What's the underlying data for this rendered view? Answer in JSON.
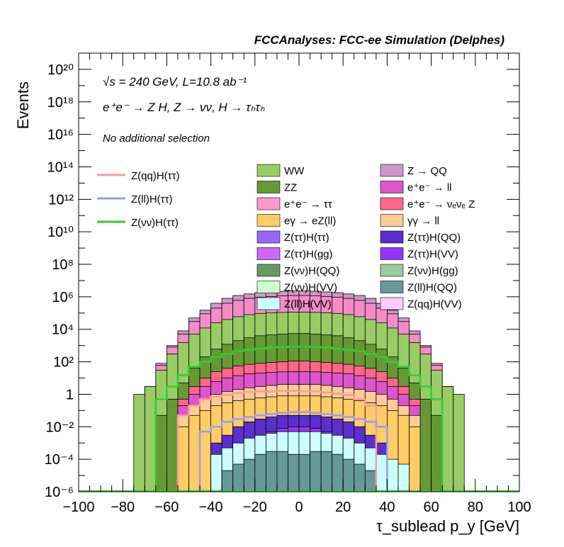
{
  "header": {
    "title": "FCCAnalyses: FCC-ee Simulation (Delphes)"
  },
  "annotations": {
    "energy": "√s = 240 GeV, L=10.8 ab⁻¹",
    "process": "e⁺e⁻ → Z H, Z → νν, H → τₕτₕ",
    "selection": "No additional selection"
  },
  "chart_data": {
    "type": "bar",
    "title": "FCCAnalyses: FCC-ee Simulation (Delphes)",
    "xlabel": "τ_sublead p_y [GeV]",
    "ylabel": "Events",
    "xlim": [
      -100,
      100
    ],
    "ylim": [
      1e-06,
      1e+21
    ],
    "yscale": "log",
    "bin_width": 5,
    "grid": false,
    "legend_placement": "top",
    "x_ticks": [
      "−100",
      "−80",
      "−60",
      "−40",
      "−20",
      "0",
      "20",
      "40",
      "60",
      "80",
      "100"
    ],
    "y_ticks": [
      "10⁻⁶",
      "10⁻⁴",
      "10⁻²",
      "1",
      "10²",
      "10⁴",
      "10⁶",
      "10⁸",
      "10¹⁰",
      "10¹²",
      "10¹⁴",
      "10¹⁶",
      "10¹⁸",
      "10²⁰"
    ],
    "stack": [
      {
        "name": "Z → QQ",
        "color": "#cc99cc",
        "x": [
          -70,
          -65,
          -60,
          -55,
          -50,
          -45,
          -40,
          -35,
          -30,
          -25,
          -20,
          -15,
          -10,
          -5,
          0,
          5,
          10,
          15,
          20,
          25,
          30,
          35,
          40,
          45,
          50,
          55,
          60,
          65
        ],
        "total": [
          3,
          80,
          1000,
          8000,
          50000,
          150000,
          400000,
          800000,
          1200000,
          1500000,
          1800000,
          2000000,
          2200000,
          2300000,
          2300000,
          2200000,
          2000000,
          1800000,
          1500000,
          1200000,
          800000,
          400000,
          150000,
          50000,
          8000,
          1000,
          80,
          3
        ]
      },
      {
        "name": "e⁺e⁻ → ττ",
        "color": "#f58cc8",
        "x": [
          -70,
          -65,
          -60,
          -55,
          -50,
          -45,
          -40,
          -35,
          -30,
          -25,
          -20,
          -15,
          -10,
          -5,
          0,
          5,
          10,
          15,
          20,
          25,
          30,
          35,
          40,
          45,
          50,
          55,
          60,
          65
        ],
        "total": [
          3,
          60,
          800,
          5000,
          30000,
          90000,
          200000,
          400000,
          600000,
          800000,
          950000,
          1050000,
          1150000,
          1200000,
          1200000,
          1150000,
          1050000,
          950000,
          800000,
          600000,
          400000,
          200000,
          90000,
          30000,
          5000,
          800,
          60,
          3
        ]
      },
      {
        "name": "WW",
        "color": "#99cc66",
        "x": [
          -75,
          -70,
          -65,
          -60,
          -55,
          -50,
          -45,
          -40,
          -35,
          -30,
          -25,
          -20,
          -15,
          -10,
          -5,
          0,
          5,
          10,
          15,
          20,
          25,
          30,
          35,
          40,
          45,
          50,
          55,
          60,
          65,
          70
        ],
        "total": [
          1,
          3,
          30,
          300,
          1500,
          5000,
          12000,
          25000,
          40000,
          60000,
          80000,
          95000,
          105000,
          110000,
          115000,
          115000,
          110000,
          105000,
          95000,
          80000,
          60000,
          40000,
          25000,
          12000,
          5000,
          1500,
          300,
          30,
          3,
          1
        ]
      },
      {
        "name": "ZZ",
        "color": "#669933",
        "x": [
          -65,
          -60,
          -55,
          -50,
          -45,
          -40,
          -35,
          -30,
          -25,
          -20,
          -15,
          -10,
          -5,
          0,
          5,
          10,
          15,
          20,
          25,
          30,
          35,
          40,
          45,
          50,
          55,
          60
        ],
        "total": [
          0.05,
          0.5,
          5,
          40,
          200,
          600,
          1200,
          2000,
          3000,
          4000,
          4500,
          5000,
          5500,
          5500,
          5000,
          4500,
          4000,
          3000,
          2000,
          1200,
          600,
          200,
          40,
          5,
          0.5,
          0.05
        ]
      },
      {
        "name": "e⁺e⁻ → νₑνₑ Z",
        "color": "#ff6688",
        "x": [
          -55,
          -50,
          -45,
          -40,
          -35,
          -30,
          -25,
          -20,
          -15,
          -10,
          -5,
          0,
          5,
          10,
          15,
          20,
          25,
          30,
          35,
          40,
          45,
          50
        ],
        "total": [
          0.5,
          3,
          10,
          25,
          40,
          55,
          70,
          80,
          90,
          100,
          110,
          110,
          100,
          90,
          80,
          70,
          55,
          40,
          25,
          10,
          3,
          0.5
        ]
      },
      {
        "name": "Z(qq)H(VV)",
        "color": "#dd55cc",
        "x": [
          -55,
          -50,
          -45,
          -40,
          -35,
          -30,
          -25,
          -20,
          -15,
          -10,
          -5,
          0,
          5,
          10,
          15,
          20,
          25,
          30,
          35,
          40,
          45,
          50
        ],
        "total": [
          0.2,
          1,
          3,
          6,
          10,
          14,
          18,
          20,
          22,
          24,
          25,
          25,
          24,
          22,
          20,
          18,
          14,
          10,
          6,
          3,
          1,
          0.2
        ]
      },
      {
        "name": "γγ → ll",
        "color": "#ffcc99",
        "x": [
          -55,
          -50,
          -45,
          -40,
          -35,
          -30,
          -25,
          -20,
          -15,
          -10,
          -5,
          0,
          5,
          10,
          15,
          20,
          25,
          30,
          35,
          40,
          45,
          50
        ],
        "total": [
          0.05,
          0.2,
          0.5,
          1,
          1.5,
          2,
          2.5,
          3,
          3.5,
          4,
          4,
          4,
          4,
          3.5,
          3,
          2.5,
          2,
          1.5,
          1,
          0.5,
          0.2,
          0.05
        ]
      },
      {
        "name": "eγ → eZ(ll)",
        "color": "#ffcc66",
        "x": [
          -55,
          -50,
          -45,
          -40,
          -35,
          -30,
          -25,
          -20,
          -15,
          -10,
          -5,
          0,
          5,
          10,
          15,
          20,
          25,
          30,
          35,
          40,
          45,
          50
        ],
        "total": [
          0.01,
          0.05,
          0.1,
          0.2,
          0.3,
          0.4,
          0.5,
          0.6,
          0.7,
          0.8,
          0.8,
          0.8,
          0.8,
          0.7,
          0.6,
          0.5,
          0.4,
          0.3,
          0.2,
          0.1,
          0.05,
          0.01
        ]
      },
      {
        "name": "Z(ττ)H(QQ)",
        "color": "#5c2ecc",
        "x": [
          -40,
          -35,
          -30,
          -25,
          -20,
          -15,
          -10,
          -5,
          0,
          5,
          10,
          15,
          20,
          25,
          30,
          35
        ],
        "total": [
          0.001,
          0.003,
          0.01,
          0.02,
          0.03,
          0.04,
          0.05,
          0.05,
          0.05,
          0.05,
          0.04,
          0.03,
          0.02,
          0.01,
          0.003,
          0.001
        ]
      },
      {
        "name": "Z(ττ)H(VV)",
        "color": "#9933ff",
        "x": [
          -20,
          -15,
          -10,
          -5,
          0,
          5,
          10,
          15,
          20
        ],
        "total": [
          0.003,
          0.005,
          0.008,
          0.01,
          0.01,
          0.008,
          0.005,
          0.003,
          0.002
        ]
      },
      {
        "name": "Z(ll)H(VV)",
        "color": "#ccffff",
        "x": [
          -40,
          -35,
          -30,
          -25,
          -20,
          -15,
          -10,
          -5,
          0,
          5,
          10,
          15,
          20,
          25,
          30,
          35,
          40,
          45
        ],
        "total": [
          0.0002,
          0.0005,
          0.001,
          0.002,
          0.003,
          0.004,
          0.005,
          0.005,
          0.005,
          0.005,
          0.004,
          0.003,
          0.002,
          0.001,
          0.0005,
          0.0002,
          0.0001,
          5e-05
        ]
      },
      {
        "name": "Z(ll)H(QQ)",
        "color": "#669999",
        "x": [
          -35,
          -30,
          -25,
          -20,
          -15,
          -10,
          -5,
          0,
          5,
          10,
          15,
          20,
          25,
          30
        ],
        "total": [
          2e-05,
          5e-05,
          0.0001,
          0.0002,
          0.0003,
          0.0003,
          0.0002,
          0.0002,
          0.0003,
          0.0003,
          0.0002,
          0.0001,
          5e-05,
          2e-05
        ]
      }
    ],
    "lines": [
      {
        "name": "Z(qq)H(ττ)",
        "color": "#ff9999",
        "x": [
          -55,
          -50,
          -45,
          -40,
          -35,
          -30,
          -25,
          -20,
          -15,
          -10,
          -5,
          0,
          5,
          10,
          15,
          20,
          25,
          30
        ],
        "values": [
          0.05,
          0.2,
          0.5,
          0.7,
          0.9,
          1.2,
          1.4,
          1.5,
          1.5,
          1.6,
          1.6,
          1.5,
          1.5,
          1.3,
          1.1,
          0.9,
          0.5,
          0.2
        ]
      },
      {
        "name": "Z(ll)H(ττ)",
        "color": "#9999ff",
        "x": [
          -45,
          -40,
          -35,
          -30,
          -25,
          -20,
          -15,
          -10,
          -5,
          0,
          5,
          10,
          15,
          20,
          25,
          30,
          35
        ],
        "values": [
          0.005,
          0.01,
          0.02,
          0.03,
          0.04,
          0.05,
          0.06,
          0.07,
          0.08,
          0.08,
          0.07,
          0.06,
          0.05,
          0.04,
          0.03,
          0.02,
          0.01
        ]
      },
      {
        "name": "Z(νν)H(ττ)",
        "color": "#33cc33",
        "x": [
          -65,
          -60,
          -55,
          -50,
          -45,
          -40,
          -35,
          -30,
          -25,
          -20,
          -15,
          -10,
          -5,
          0,
          5,
          10,
          15,
          20,
          25,
          30,
          35,
          40,
          45,
          50,
          55,
          60
        ],
        "values": [
          0.5,
          3,
          15,
          50,
          100,
          200,
          300,
          450,
          550,
          650,
          750,
          800,
          850,
          850,
          800,
          750,
          650,
          550,
          450,
          300,
          200,
          100,
          50,
          15,
          3,
          0.5
        ]
      }
    ],
    "legend_columns": [
      [
        "WW",
        "ZZ",
        "e⁺e⁻ → ττ",
        "eγ → eZ(ll)",
        "Z(ττ)H(ττ)",
        "Z(ττ)H(gg)",
        "Z(νν)H(QQ)",
        "Z(νν)H(VV)",
        "Z(ll)H(VV)"
      ],
      [
        "Z → QQ",
        "e⁺e⁻ → ll",
        "e⁺e⁻ → νₑνₑ Z",
        "γγ → ll",
        "Z(ττ)H(QQ)",
        "Z(ττ)H(VV)",
        "Z(νν)H(gg)",
        "Z(ll)H(QQ)",
        "Z(qq)H(VV)"
      ]
    ],
    "legend_colors": {
      "WW": "#99cc66",
      "ZZ": "#669933",
      "e⁺e⁻ → ττ": "#ff99cc",
      "eγ → eZ(ll)": "#ffcc66",
      "Z(ττ)H(ττ)": "#9966ff",
      "Z(ττ)H(gg)": "#cc66ff",
      "Z(νν)H(QQ)": "#669966",
      "Z(νν)H(VV)": "#ccffcc",
      "Z(ll)H(VV)": "#ccffff",
      "Z → QQ": "#cc99cc",
      "e⁺e⁻ → ll": "#dd55cc",
      "e⁺e⁻ → νₑνₑ Z": "#ff6688",
      "γγ → ll": "#ffcc99",
      "Z(ττ)H(QQ)": "#5c2ecc",
      "Z(ττ)H(VV)": "#9933ff",
      "Z(νν)H(gg)": "#99cc99",
      "Z(ll)H(QQ)": "#669999",
      "Z(qq)H(VV)": "#ffccff"
    }
  }
}
